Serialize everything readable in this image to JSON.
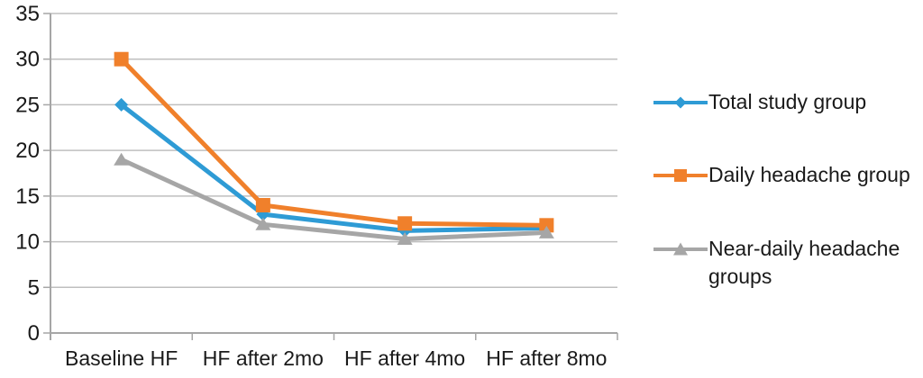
{
  "chart_data": {
    "type": "line",
    "title": "",
    "xlabel": "",
    "ylabel": "",
    "categories": [
      "Baseline HF",
      "HF after 2mo",
      "HF after 4mo",
      "HF after 8mo"
    ],
    "series": [
      {
        "name": "Total study group",
        "color": "#2E9BD5",
        "marker": "diamond",
        "values": [
          25,
          13,
          11.2,
          11.5
        ]
      },
      {
        "name": "Daily headache group",
        "color": "#F0802B",
        "marker": "square",
        "values": [
          30,
          14,
          12,
          11.8
        ]
      },
      {
        "name": "Near-daily headache groups",
        "color": "#A6A6A6",
        "marker": "triangle",
        "values": [
          19,
          11.9,
          10.3,
          11
        ]
      }
    ],
    "ylim": [
      0,
      35
    ],
    "yticks": [
      0,
      5,
      10,
      15,
      20,
      25,
      30,
      35
    ],
    "grid": true,
    "legend_position": "right",
    "gridline_color": "#BFBFBF",
    "axis_color": "#A6A6A6",
    "text_color": "#1A1A1A"
  }
}
